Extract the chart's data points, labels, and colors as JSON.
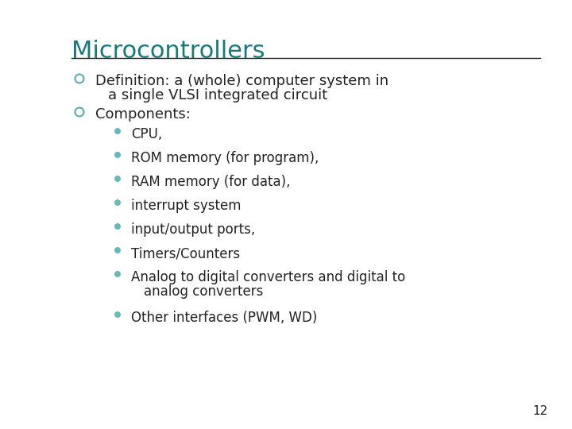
{
  "title": "Microcontrollers",
  "title_color": "#1a7a7a",
  "title_fontsize": 22,
  "background_color": "#FFFFFF",
  "line_color": "#222222",
  "bullet1_color": "#5aadad",
  "sub_bullet_color": "#6ab8b8",
  "text_color": "#222222",
  "bullet1_items": [
    "Definition: a (whole) computer system in\n  a single VLSI integrated circuit",
    "Components:"
  ],
  "sub_items": [
    "CPU,",
    "ROM memory (for program),",
    "RAM memory (for data),",
    "interrupt system",
    "input/output ports,",
    "Timers/Counters",
    "Analog to digital converters and digital to\n    analog converters",
    "Other interfaces (PWM, WD)"
  ],
  "page_number": "12",
  "font_family": "DejaVu Sans"
}
